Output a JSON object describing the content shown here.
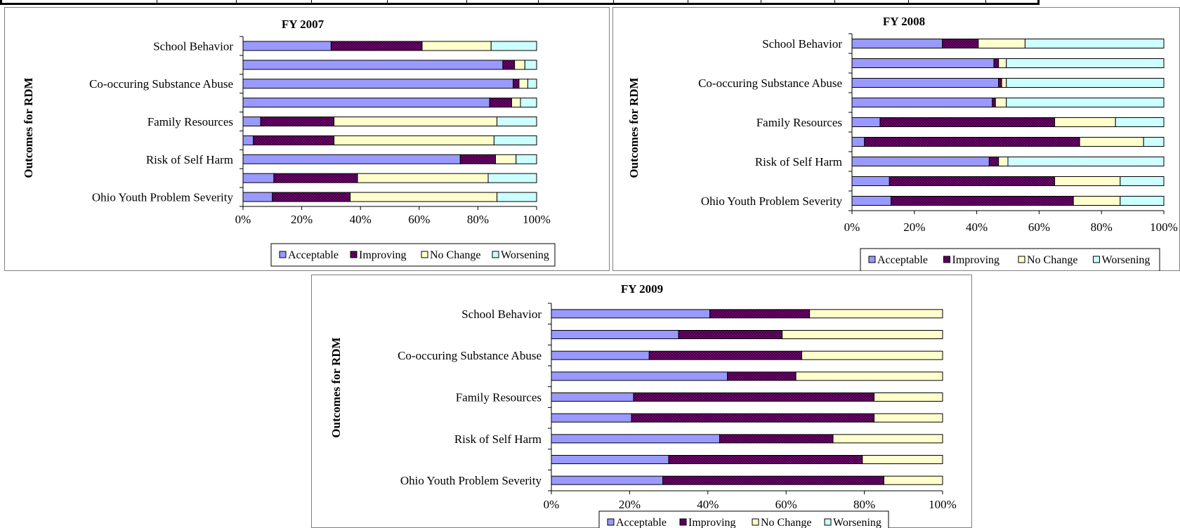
{
  "chart_data": [
    {
      "type": "bar",
      "stacked": true,
      "orientation": "horizontal",
      "title": "FY 2007",
      "ylabel": "Outcomes for RDM",
      "xlabel": "",
      "xlim": [
        0,
        100
      ],
      "x_ticks": [
        "0%",
        "20%",
        "40%",
        "60%",
        "80%",
        "100%"
      ],
      "categories": [
        "School Behavior",
        "",
        "Co-occuring Substance Abuse",
        "",
        "Family Resources",
        "",
        "Risk of Self Harm",
        "",
        "Ohio Youth Problem Severity"
      ],
      "series": [
        {
          "name": "Acceptable",
          "values": [
            30,
            88.5,
            92,
            84,
            6,
            3.5,
            74,
            10.5,
            10
          ]
        },
        {
          "name": "Improving",
          "values": [
            31,
            4,
            2,
            7.5,
            25,
            27.5,
            12,
            28.5,
            26.5
          ]
        },
        {
          "name": "No Change",
          "values": [
            23.5,
            3.5,
            3,
            3,
            55.5,
            54.5,
            7,
            44.5,
            50
          ]
        },
        {
          "name": "Worsening",
          "values": [
            15.5,
            4,
            3,
            5.5,
            13.5,
            14.5,
            7,
            16.5,
            13.5
          ]
        }
      ],
      "legend_position": "bottom",
      "colors": {
        "Acceptable": "#9999ff",
        "Improving": "#660066",
        "No Change": "#ffffcc",
        "Worsening": "#ccffff"
      }
    },
    {
      "type": "bar",
      "stacked": true,
      "orientation": "horizontal",
      "title": "FY 2008",
      "ylabel": "Outcomes for RDM",
      "xlabel": "",
      "xlim": [
        0,
        100
      ],
      "x_ticks": [
        "0%",
        "20%",
        "40%",
        "60%",
        "80%",
        "100%"
      ],
      "categories": [
        "School Behavior",
        "",
        "Co-occuring Substance Abuse",
        "",
        "Family Resources",
        "",
        "Risk of Self Harm",
        "",
        "Ohio Youth Problem Severity"
      ],
      "series": [
        {
          "name": "Acceptable",
          "values": [
            29,
            45.5,
            47,
            45,
            9,
            4,
            44,
            12,
            12.5
          ]
        },
        {
          "name": "Improving",
          "values": [
            11.5,
            1.5,
            1,
            1,
            56,
            69,
            3,
            53,
            58.5
          ]
        },
        {
          "name": "No Change",
          "values": [
            15,
            2.5,
            1.5,
            3.5,
            19.5,
            20.5,
            3,
            21,
            15
          ]
        },
        {
          "name": "Worsening",
          "values": [
            44.5,
            50.5,
            50.5,
            50.5,
            15.5,
            6.5,
            50,
            14,
            14
          ]
        }
      ],
      "legend_position": "bottom",
      "colors": {
        "Acceptable": "#9999ff",
        "Improving": "#660066",
        "No Change": "#ffffcc",
        "Worsening": "#ccffff"
      }
    },
    {
      "type": "bar",
      "stacked": true,
      "orientation": "horizontal",
      "title": "FY 2009",
      "ylabel": "Outcomes for RDM",
      "xlabel": "",
      "xlim": [
        0,
        100
      ],
      "x_ticks": [
        "0%",
        "20%",
        "40%",
        "60%",
        "80%",
        "100%"
      ],
      "categories": [
        "School Behavior",
        "",
        "Co-occuring Substance Abuse",
        "",
        "Family Resources",
        "",
        "Risk of Self Harm",
        "",
        "Ohio Youth Problem Severity"
      ],
      "series": [
        {
          "name": "Acceptable",
          "values": [
            40.5,
            32.5,
            25,
            45,
            21,
            20.5,
            43,
            30,
            28.5
          ]
        },
        {
          "name": "Improving",
          "values": [
            25.5,
            26.5,
            39,
            17.5,
            61.5,
            62,
            29,
            49.5,
            56.5
          ]
        },
        {
          "name": "No Change",
          "values": [
            34,
            41,
            36,
            37.5,
            17.5,
            17.5,
            28,
            20.5,
            15
          ]
        },
        {
          "name": "Worsening",
          "values": [
            0,
            0,
            0,
            0,
            0,
            0,
            0,
            0,
            0
          ]
        }
      ],
      "legend_position": "bottom",
      "colors": {
        "Acceptable": "#9999ff",
        "Improving": "#660066",
        "No Change": "#ffffcc",
        "Worsening": "#ccffff"
      }
    }
  ]
}
